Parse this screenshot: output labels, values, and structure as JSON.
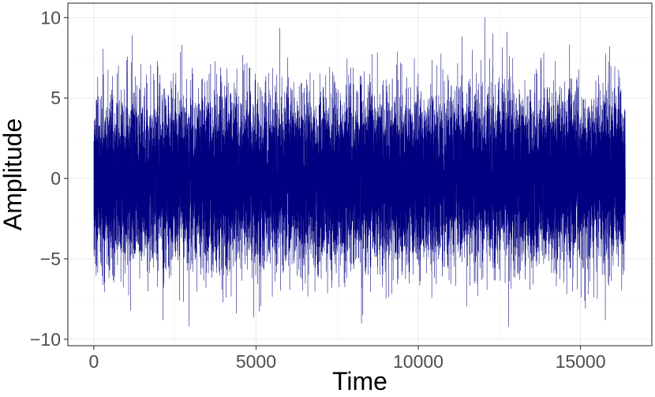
{
  "chart_data": {
    "type": "line",
    "title": "",
    "xlabel": "Time",
    "ylabel": "Amplitude",
    "xlim": [
      -800,
      17200
    ],
    "ylim": [
      -10.4,
      10.9
    ],
    "x_ticks": [
      0,
      5000,
      10000,
      15000
    ],
    "x_tick_labels": [
      "0",
      "5000",
      "10000",
      "15000"
    ],
    "y_ticks": [
      -10,
      -5,
      0,
      5,
      10
    ],
    "y_tick_labels": [
      "−10",
      "−5",
      "0",
      "5",
      "10"
    ],
    "grid": true,
    "legend": "none",
    "series": [
      {
        "color": "#000080",
        "n_points": 16384,
        "x_start": 1,
        "x_end": 16384,
        "description_values": "white-noise amplitude, mean about 0, standard deviation about 2.5",
        "approx_min": -9.2,
        "approx_max": 10.0,
        "notable_points": [
          {
            "x": 1180,
            "y": 8.9
          },
          {
            "x": 2130,
            "y": -8.8
          },
          {
            "x": 8250,
            "y": -9.0
          },
          {
            "x": 12050,
            "y": 10.0
          },
          {
            "x": 12300,
            "y": 9.0
          },
          {
            "x": 12780,
            "y": -9.2
          },
          {
            "x": 15900,
            "y": 8.2
          }
        ]
      }
    ]
  },
  "colors": {
    "panel_background": "#ffffff",
    "panel_border": "#333333",
    "grid": "#ebebeb",
    "line": "#000080"
  }
}
